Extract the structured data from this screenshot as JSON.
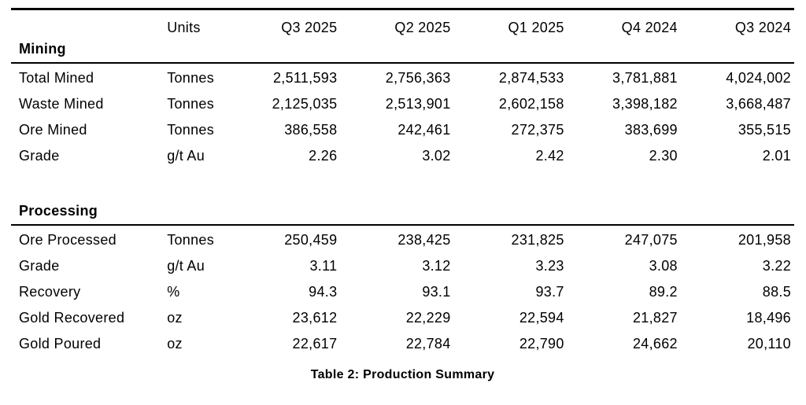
{
  "table": {
    "columns": [
      "",
      "Units",
      "Q3 2025",
      "Q2 2025",
      "Q1 2025",
      "Q4 2024",
      "Q3 2024"
    ],
    "sections": [
      {
        "heading": "Mining",
        "rows": [
          {
            "label": "Total Mined",
            "units": "Tonnes",
            "values": [
              "2,511,593",
              "2,756,363",
              "2,874,533",
              "3,781,881",
              "4,024,002"
            ]
          },
          {
            "label": "Waste Mined",
            "units": "Tonnes",
            "values": [
              "2,125,035",
              "2,513,901",
              "2,602,158",
              "3,398,182",
              "3,668,487"
            ]
          },
          {
            "label": "Ore Mined",
            "units": "Tonnes",
            "values": [
              "386,558",
              "242,461",
              "272,375",
              "383,699",
              "355,515"
            ]
          },
          {
            "label": "Grade",
            "units": "g/t Au",
            "values": [
              "2.26",
              "3.02",
              "2.42",
              "2.30",
              "2.01"
            ]
          }
        ]
      },
      {
        "heading": "Processing",
        "rows": [
          {
            "label": "Ore Processed",
            "units": "Tonnes",
            "values": [
              "250,459",
              "238,425",
              "231,825",
              "247,075",
              "201,958"
            ]
          },
          {
            "label": "Grade",
            "units": "g/t Au",
            "values": [
              "3.11",
              "3.12",
              "3.23",
              "3.08",
              "3.22"
            ]
          },
          {
            "label": "Recovery",
            "units": "%",
            "values": [
              "94.3",
              "93.1",
              "93.7",
              "89.2",
              "88.5"
            ]
          },
          {
            "label": "Gold Recovered",
            "units": "oz",
            "values": [
              "23,612",
              "22,229",
              "22,594",
              "21,827",
              "18,496"
            ]
          },
          {
            "label": "Gold Poured",
            "units": "oz",
            "values": [
              "22,617",
              "22,784",
              "22,790",
              "24,662",
              "20,110"
            ]
          }
        ]
      }
    ],
    "caption": "Table 2: Production Summary",
    "colors": {
      "text": "#000000",
      "background": "#ffffff",
      "rule": "#000000"
    }
  }
}
